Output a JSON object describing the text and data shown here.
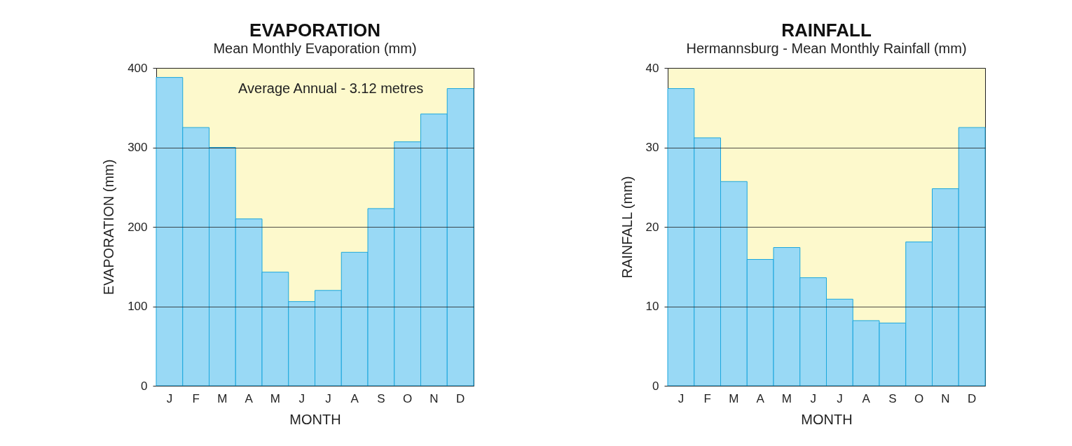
{
  "chart_data": [
    {
      "type": "bar",
      "title": "EVAPORATION",
      "subtitle": "Mean Monthly Evaporation (mm)",
      "xlabel": "MONTH",
      "ylabel": "EVAPORATION (mm)",
      "categories": [
        "J",
        "F",
        "M",
        "A",
        "M",
        "J",
        "J",
        "A",
        "S",
        "O",
        "N",
        "D"
      ],
      "series": [
        {
          "color": "#99d9f5",
          "values": [
            388,
            325,
            300,
            210,
            143,
            106,
            120,
            168,
            223,
            307,
            342,
            374
          ]
        }
      ],
      "ylim": [
        0,
        400
      ],
      "yticks": [
        0,
        100,
        200,
        300,
        400
      ],
      "grid": "y",
      "annotations": [
        "Average Annual  - 3.12 metres"
      ]
    },
    {
      "type": "bar",
      "title": "RAINFALL",
      "subtitle": "Hermannsburg - Mean Monthly Rainfall (mm)",
      "xlabel": "MONTH",
      "ylabel": "RAINFALL (mm)",
      "categories": [
        "J",
        "F",
        "M",
        "A",
        "M",
        "J",
        "J",
        "A",
        "S",
        "O",
        "N",
        "D"
      ],
      "series": [
        {
          "color": "#99d9f5",
          "values": [
            37.4,
            31.2,
            25.7,
            15.9,
            17.4,
            13.6,
            10.9,
            8.2,
            7.9,
            18.1,
            24.8,
            32.5
          ]
        }
      ],
      "ylim": [
        0,
        40
      ],
      "yticks": [
        0,
        10,
        20,
        30,
        40
      ],
      "grid": "y"
    }
  ]
}
